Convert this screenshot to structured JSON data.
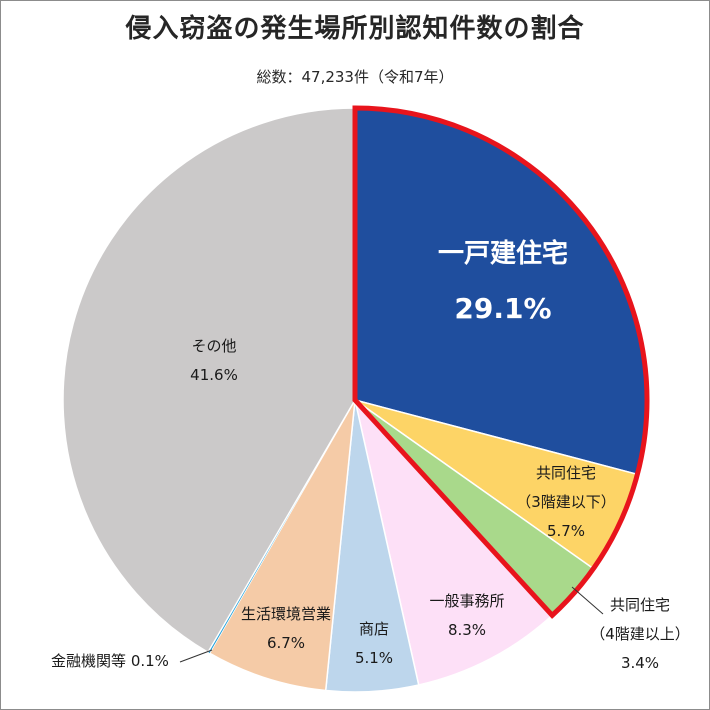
{
  "chart_data": {
    "type": "pie",
    "title": "侵入窃盗の発生場所別認知件数の割合",
    "subtitle": "総数：47,233件（令和7年）",
    "start": "top-clockwise",
    "slices": [
      {
        "label": "一戸建住宅",
        "label2": "",
        "value": 29.1,
        "value_label": "29.1%",
        "color": "#1f4e9e",
        "highlight": true
      },
      {
        "label": "共同住宅",
        "label2": "（3階建以下）",
        "value": 5.7,
        "value_label": "5.7%",
        "color": "#fdd466",
        "highlight": true
      },
      {
        "label": "共同住宅",
        "label2": "（4階建以上）",
        "value": 3.4,
        "value_label": "3.4%",
        "color": "#a9d98b",
        "highlight": true
      },
      {
        "label": "一般事務所",
        "label2": "",
        "value": 8.3,
        "value_label": "8.3%",
        "color": "#fde0f7",
        "highlight": false
      },
      {
        "label": "商店",
        "label2": "",
        "value": 5.1,
        "value_label": "5.1%",
        "color": "#bdd6ec",
        "highlight": false
      },
      {
        "label": "生活環境営業",
        "label2": "",
        "value": 6.7,
        "value_label": "6.7%",
        "color": "#f5cba7",
        "highlight": false
      },
      {
        "label": "金融機関等",
        "label2": "",
        "value": 0.1,
        "value_label": "0.1%",
        "color": "#1e9fd9",
        "highlight": false
      },
      {
        "label": "その他",
        "label2": "",
        "value": 41.6,
        "value_label": "41.6%",
        "color": "#cbc9c9",
        "highlight": false
      }
    ],
    "highlight_color": "#e8141c"
  }
}
